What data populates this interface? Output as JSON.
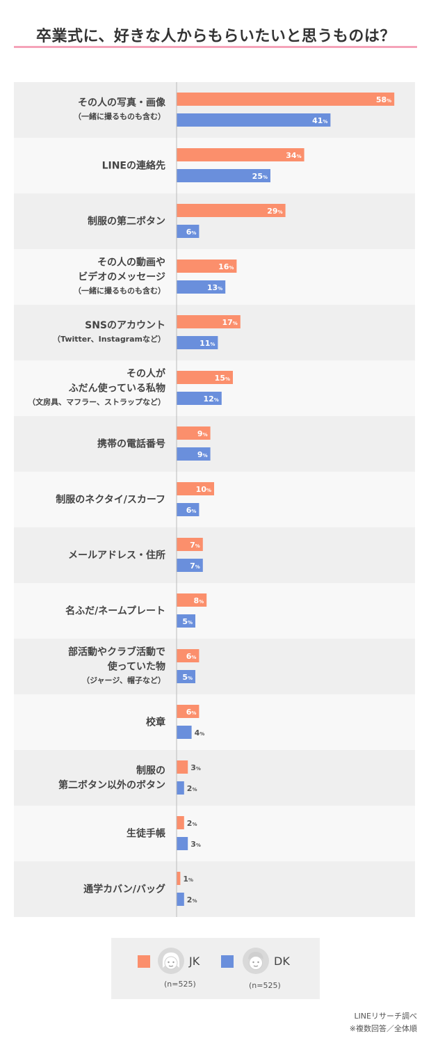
{
  "title": "卒業式に、好きな人からもらいたいと思うものは？",
  "colors": {
    "jk": "#fb8f6c",
    "dk": "#6a8fdc",
    "row_dark": "#efefef",
    "row_light": "#f8f8f8",
    "accent": "#f5a3b8"
  },
  "percent_sign": "%",
  "chart_data": {
    "type": "bar",
    "orientation": "horizontal",
    "categories": [
      {
        "lines": [
          "その人の写真・画像"
        ],
        "sub": "（一緒に撮るものも含む）"
      },
      {
        "lines": [
          "LINEの連絡先"
        ],
        "sub": ""
      },
      {
        "lines": [
          "制服の第二ボタン"
        ],
        "sub": ""
      },
      {
        "lines": [
          "その人の動画や",
          "ビデオのメッセージ"
        ],
        "sub": "（一緒に撮るものも含む）"
      },
      {
        "lines": [
          "SNSのアカウント"
        ],
        "sub": "（Twitter、Instagramなど）"
      },
      {
        "lines": [
          "その人が",
          "ふだん使っている私物"
        ],
        "sub": "（文房具、マフラー、ストラップなど）"
      },
      {
        "lines": [
          "携帯の電話番号"
        ],
        "sub": ""
      },
      {
        "lines": [
          "制服のネクタイ/スカーフ"
        ],
        "sub": ""
      },
      {
        "lines": [
          "メールアドレス・住所"
        ],
        "sub": ""
      },
      {
        "lines": [
          "名ふだ/ネームプレート"
        ],
        "sub": ""
      },
      {
        "lines": [
          "部活動やクラブ活動で",
          "使っていた物"
        ],
        "sub": "（ジャージ、帽子など）"
      },
      {
        "lines": [
          "校章"
        ],
        "sub": ""
      },
      {
        "lines": [
          "制服の",
          "第二ボタン以外のボタン"
        ],
        "sub": ""
      },
      {
        "lines": [
          "生徒手帳"
        ],
        "sub": ""
      },
      {
        "lines": [
          "通学カバン/バッグ"
        ],
        "sub": ""
      }
    ],
    "series": [
      {
        "name": "JK",
        "n": "(n=525)",
        "values": [
          58,
          34,
          29,
          16,
          17,
          15,
          9,
          10,
          7,
          8,
          6,
          6,
          3,
          2,
          1
        ]
      },
      {
        "name": "DK",
        "n": "(n=525)",
        "values": [
          41,
          25,
          6,
          13,
          11,
          12,
          9,
          6,
          7,
          5,
          5,
          4,
          2,
          3,
          2
        ]
      }
    ],
    "unit": "%",
    "xlim": [
      0,
      60
    ],
    "legend": "bottom"
  },
  "footer": {
    "source": "LINEリサーチ調べ",
    "note": "※複数回答／全体順"
  }
}
